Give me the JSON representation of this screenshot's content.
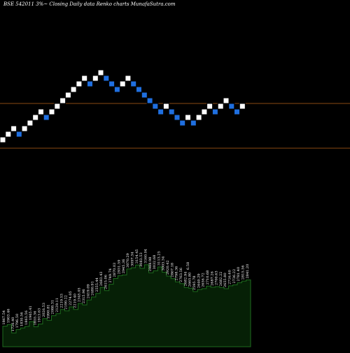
{
  "header": {
    "text": "BSE 542011 3%~  Closing Daily data  Renko  charts MunafaSutra.com"
  },
  "colors": {
    "background": "#000000",
    "up_brick": "#ffffff",
    "down_brick": "#1f6fe0",
    "brick_outline": "#000000",
    "line": "#8a4a12",
    "volume_fill": "#062006",
    "volume_stroke": "#1e6b1e",
    "label": "#ffffff"
  },
  "chart_data": [
    {
      "type": "renko",
      "brick_sequence": [
        "up",
        "up",
        "up",
        "down",
        "up",
        "up",
        "up",
        "up",
        "down",
        "up",
        "up",
        "up",
        "up",
        "up",
        "up",
        "up",
        "down",
        "up",
        "up",
        "down",
        "down",
        "down",
        "up",
        "up",
        "down",
        "down",
        "down",
        "down",
        "down",
        "down",
        "up",
        "down",
        "down",
        "down",
        "up",
        "down",
        "up",
        "up",
        "up",
        "down",
        "up",
        "up",
        "down",
        "down",
        "up"
      ],
      "reference_lines_brick_level": [
        7,
        -1
      ]
    },
    {
      "type": "area",
      "labels": [
        "1867.54",
        "1903.46",
        "1726.40",
        "1796.50",
        "1830.56",
        "1863.56",
        "1965.41",
        "1855.36",
        "1913.63",
        "2026.53",
        "1990.81",
        "2088.31",
        "2129.11",
        "2219.53",
        "2190.22",
        "2274.05",
        "2219.40",
        "2345.05",
        "2315.96",
        "2419.09",
        "2480.91",
        "2555.44",
        "2683.43",
        "2615.06",
        "2749.74",
        "2870.03",
        "2931.59",
        "2945.36",
        "3070.29",
        "3097.34",
        "3154.45",
        "3083.53",
        "3160.04",
        "2988.98",
        "3032.68",
        "3113.25",
        "3003.34",
        "2920.42",
        "2867.18",
        "2798.36",
        "2763.56",
        "2682.94",
        "2665.80",
        "2595.78",
        "2640.29",
        "2656.72",
        "2710.68",
        "2687.26",
        "2700.63",
        "2682.22",
        "2655.80",
        "2716.60",
        "2736.22",
        "2781.40",
        "2815.56",
        "2841.20"
      ],
      "extra_labels": [
        "6.58"
      ]
    }
  ]
}
